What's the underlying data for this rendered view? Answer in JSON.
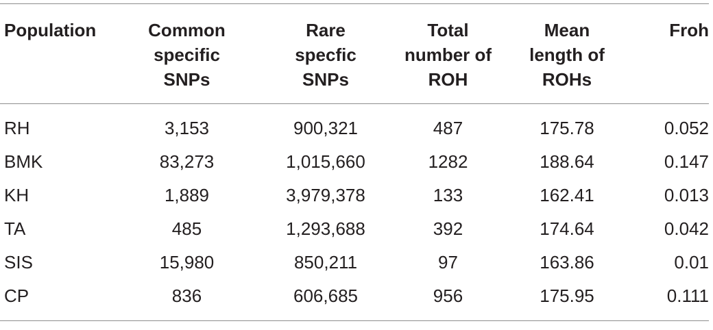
{
  "table": {
    "headers": [
      {
        "lines": [
          "Population"
        ]
      },
      {
        "lines": [
          "Common",
          "specific",
          "SNPs"
        ]
      },
      {
        "lines": [
          "Rare",
          "specfic",
          "SNPs"
        ]
      },
      {
        "lines": [
          "Total",
          "number of",
          "ROH"
        ]
      },
      {
        "lines": [
          "Mean",
          "length of",
          "ROHs"
        ]
      },
      {
        "lines": [
          "Froh"
        ]
      }
    ],
    "rows": [
      [
        "RH",
        "3,153",
        "900,321",
        "487",
        "175.78",
        "0.052"
      ],
      [
        "BMK",
        "83,273",
        "1,015,660",
        "1282",
        "188.64",
        "0.147"
      ],
      [
        "KH",
        "1,889",
        "3,979,378",
        "133",
        "162.41",
        "0.013"
      ],
      [
        "TA",
        "485",
        "1,293,688",
        "392",
        "174.64",
        "0.042"
      ],
      [
        "SIS",
        "15,980",
        "850,211",
        "97",
        "163.86",
        "0.01"
      ],
      [
        "CP",
        "836",
        "606,685",
        "956",
        "175.95",
        "0.111"
      ]
    ]
  }
}
